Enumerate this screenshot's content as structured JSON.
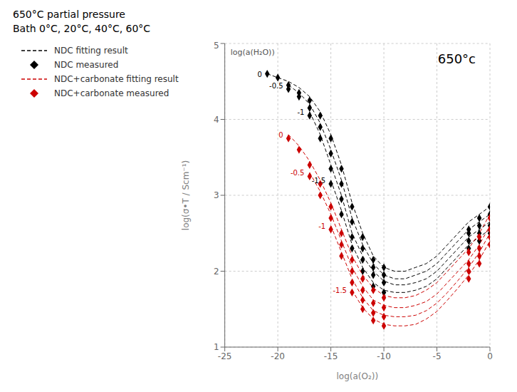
{
  "chart_data": {
    "type": "line",
    "title": "650°C partial pressure\nBath 0°C, 20°C, 40°C, 60°C",
    "annotation": "650°c",
    "group_label": "log(a(H₂O))",
    "xlabel": "log(a(O₂))",
    "ylabel": "log(σ•T / Scm⁻¹)",
    "xlim": [
      -25,
      0
    ],
    "xticks": [
      -25,
      -20,
      -15,
      -10,
      -5,
      0
    ],
    "ylim": [
      1,
      5
    ],
    "yticks": [
      1,
      2,
      3,
      4,
      5
    ],
    "grid": true,
    "legend": "upper left",
    "series": [
      {
        "name": "NDC fitting result",
        "color": "#000000",
        "line_style": "dashed",
        "curves": [
          {
            "h2o": 0.0,
            "x": [
              -21,
              -20,
              -19,
              -18,
              -17,
              -16,
              -15,
              -14,
              -13,
              -12,
              -11,
              -10,
              -9,
              -8,
              -7,
              -6,
              -5,
              -4,
              -3,
              -2,
              -1,
              0
            ],
            "values": [
              4.6,
              4.55,
              4.5,
              4.42,
              4.3,
              4.1,
              3.8,
              3.4,
              2.9,
              2.5,
              2.2,
              2.05,
              2.0,
              2.0,
              2.05,
              2.1,
              2.2,
              2.35,
              2.5,
              2.65,
              2.75,
              2.85
            ]
          },
          {
            "h2o": -0.5,
            "x": [
              -19,
              -18,
              -17,
              -16,
              -15,
              -14,
              -13,
              -12,
              -11,
              -10,
              -9,
              -8,
              -7,
              -6,
              -5,
              -4,
              -3,
              -2,
              -1,
              0
            ],
            "values": [
              4.45,
              4.35,
              4.2,
              3.95,
              3.6,
              3.2,
              2.7,
              2.35,
              2.1,
              1.95,
              1.9,
              1.9,
              1.95,
              2.0,
              2.1,
              2.25,
              2.4,
              2.55,
              2.65,
              2.75
            ]
          },
          {
            "h2o": -1.0,
            "x": [
              -17,
              -16,
              -15,
              -14,
              -13,
              -12,
              -11,
              -10,
              -9,
              -8,
              -7,
              -6,
              -5,
              -4,
              -3,
              -2,
              -1,
              0
            ],
            "values": [
              4.1,
              3.8,
              3.4,
              3.0,
              2.5,
              2.2,
              2.0,
              1.87,
              1.82,
              1.82,
              1.85,
              1.9,
              2.0,
              2.15,
              2.3,
              2.45,
              2.55,
              2.65
            ]
          },
          {
            "h2o": -1.5,
            "x": [
              -15,
              -14,
              -13,
              -12,
              -11,
              -10,
              -9,
              -8,
              -7,
              -6,
              -5,
              -4,
              -3,
              -2,
              -1,
              0
            ],
            "values": [
              3.2,
              2.8,
              2.35,
              2.05,
              1.85,
              1.75,
              1.72,
              1.72,
              1.75,
              1.8,
              1.9,
              2.05,
              2.2,
              2.35,
              2.45,
              2.55
            ]
          }
        ]
      },
      {
        "name": "NDC measured",
        "color": "#000000",
        "marker": "diamond",
        "curves": [
          {
            "h2o": 0.0,
            "x": [
              -21,
              -20,
              -19,
              -18,
              -17,
              -16,
              -15,
              -14,
              -13,
              -12,
              -11,
              -10,
              -2,
              -1,
              0
            ],
            "values": [
              4.6,
              4.55,
              4.45,
              4.35,
              4.25,
              4.05,
              3.75,
              3.35,
              2.85,
              2.45,
              2.15,
              2.05,
              2.55,
              2.7,
              2.85
            ]
          },
          {
            "h2o": -0.5,
            "x": [
              -19,
              -18,
              -17,
              -16,
              -15,
              -14,
              -13,
              -12,
              -11,
              -10,
              -2,
              -1,
              0
            ],
            "values": [
              4.4,
              4.3,
              4.15,
              3.9,
              3.55,
              3.15,
              2.65,
              2.3,
              2.05,
              1.95,
              2.5,
              2.6,
              2.75
            ]
          },
          {
            "h2o": -1.0,
            "x": [
              -17,
              -16,
              -15,
              -14,
              -13,
              -12,
              -11,
              -10,
              -2,
              -1,
              0
            ],
            "values": [
              4.05,
              3.75,
              3.35,
              2.95,
              2.45,
              2.15,
              1.95,
              1.85,
              2.4,
              2.5,
              2.6
            ]
          },
          {
            "h2o": -1.5,
            "x": [
              -15,
              -14,
              -13,
              -12,
              -11,
              -10,
              -2,
              -1,
              0
            ],
            "values": [
              3.15,
              2.75,
              2.3,
              2.0,
              1.8,
              1.72,
              2.3,
              2.4,
              2.5
            ]
          }
        ]
      },
      {
        "name": "NDC+carbonate fitting result",
        "color": "#cc0000",
        "line_style": "dashed",
        "curves": [
          {
            "h2o": 0.0,
            "x": [
              -19,
              -18,
              -17,
              -16,
              -15,
              -14,
              -13,
              -12,
              -11,
              -10,
              -9,
              -8,
              -7,
              -6,
              -5,
              -4,
              -3,
              -2,
              -1,
              0
            ],
            "values": [
              3.8,
              3.65,
              3.45,
              3.2,
              2.9,
              2.55,
              2.2,
              1.95,
              1.78,
              1.68,
              1.65,
              1.65,
              1.68,
              1.75,
              1.85,
              2.0,
              2.15,
              2.3,
              2.5,
              2.75
            ]
          },
          {
            "h2o": -0.5,
            "x": [
              -17,
              -16,
              -15,
              -14,
              -13,
              -12,
              -11,
              -10,
              -9,
              -8,
              -7,
              -6,
              -5,
              -4,
              -3,
              -2,
              -1,
              0
            ],
            "values": [
              3.3,
              3.05,
              2.75,
              2.4,
              2.05,
              1.8,
              1.62,
              1.55,
              1.52,
              1.52,
              1.55,
              1.6,
              1.7,
              1.85,
              2.0,
              2.15,
              2.35,
              2.6
            ]
          },
          {
            "h2o": -1.0,
            "x": [
              -15,
              -14,
              -13,
              -12,
              -11,
              -10,
              -9,
              -8,
              -7,
              -6,
              -5,
              -4,
              -3,
              -2,
              -1,
              0
            ],
            "values": [
              2.6,
              2.25,
              1.9,
              1.65,
              1.48,
              1.42,
              1.4,
              1.4,
              1.42,
              1.48,
              1.58,
              1.72,
              1.88,
              2.05,
              2.25,
              2.5
            ]
          },
          {
            "h2o": -1.5,
            "x": [
              -13,
              -12,
              -11,
              -10,
              -9,
              -8,
              -7,
              -6,
              -5,
              -4,
              -3,
              -2,
              -1,
              0
            ],
            "values": [
              1.75,
              1.52,
              1.37,
              1.3,
              1.28,
              1.28,
              1.3,
              1.37,
              1.47,
              1.62,
              1.78,
              1.95,
              2.15,
              2.4
            ]
          }
        ]
      },
      {
        "name": "NDC+carbonate measured",
        "color": "#cc0000",
        "marker": "diamond",
        "curves": [
          {
            "h2o": 0.0,
            "x": [
              -19,
              -18,
              -17,
              -16,
              -15,
              -14,
              -13,
              -12,
              -11,
              -10,
              -2,
              -1,
              0
            ],
            "values": [
              3.75,
              3.6,
              3.4,
              3.15,
              2.85,
              2.5,
              2.15,
              1.9,
              1.75,
              1.65,
              2.25,
              2.45,
              2.7
            ]
          },
          {
            "h2o": -0.5,
            "x": [
              -17,
              -16,
              -15,
              -14,
              -13,
              -12,
              -11,
              -10,
              -2,
              -1,
              0
            ],
            "values": [
              3.25,
              3.0,
              2.7,
              2.35,
              2.0,
              1.75,
              1.58,
              1.52,
              2.1,
              2.3,
              2.55
            ]
          },
          {
            "h2o": -1.0,
            "x": [
              -15,
              -14,
              -13,
              -12,
              -11,
              -10,
              -2,
              -1,
              0
            ],
            "values": [
              2.55,
              2.2,
              1.85,
              1.62,
              1.45,
              1.4,
              2.0,
              2.2,
              2.45
            ]
          },
          {
            "h2o": -1.5,
            "x": [
              -13,
              -12,
              -11,
              -10,
              -2,
              -1,
              0
            ],
            "values": [
              1.72,
              1.5,
              1.35,
              1.28,
              1.9,
              2.1,
              2.35
            ]
          }
        ]
      }
    ]
  }
}
